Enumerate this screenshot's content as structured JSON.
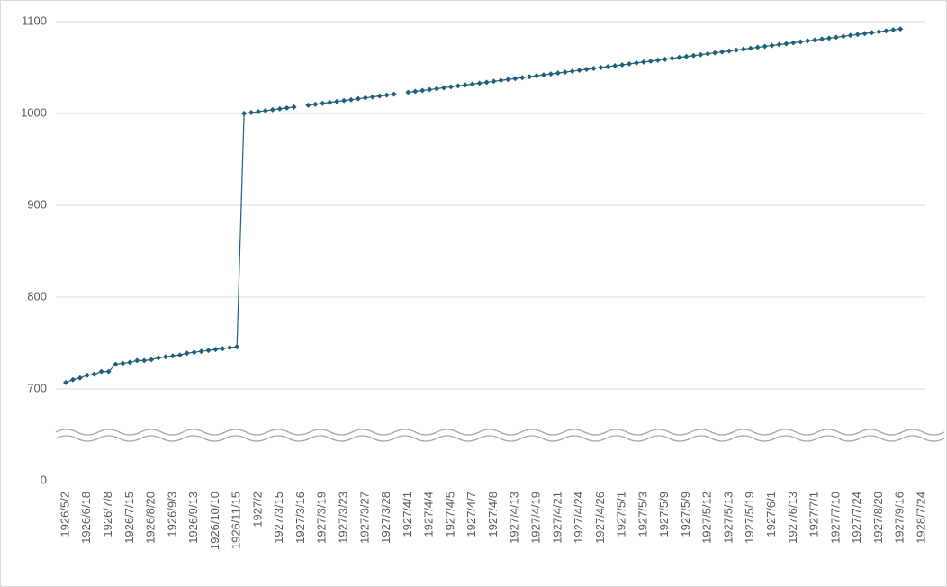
{
  "chart_data": {
    "type": "line",
    "categories": [
      "1926/5/2",
      null,
      null,
      "1926/6/18",
      null,
      null,
      "1926/7/8",
      null,
      null,
      "1926/7/15",
      null,
      null,
      "1926/8/20",
      null,
      null,
      "1926/9/3",
      null,
      null,
      "1926/9/13",
      null,
      null,
      "1926/10/10",
      null,
      null,
      "1926/11/15",
      null,
      null,
      "1927/2",
      null,
      null,
      "1927/3/15",
      null,
      null,
      "1927/3/16",
      null,
      null,
      "1927/3/19",
      null,
      null,
      "1927/3/23",
      null,
      null,
      "1927/3/27",
      null,
      null,
      "1927/3/28",
      null,
      null,
      "1927/4/1",
      null,
      null,
      "1927/4/4",
      null,
      null,
      "1927/4/5",
      null,
      null,
      "1927/4/7",
      null,
      null,
      "1927/4/8",
      null,
      null,
      "1927/4/13",
      null,
      null,
      "1927/4/19",
      null,
      null,
      "1927/4/21",
      null,
      null,
      "1927/4/24",
      null,
      null,
      "1927/4/26",
      null,
      null,
      "1927/5/1",
      null,
      null,
      "1927/5/3",
      null,
      null,
      "1927/5/9",
      null,
      null,
      "1927/5/9",
      null,
      null,
      "1927/5/12",
      null,
      null,
      "1927/5/13",
      null,
      null,
      "1927/5/19",
      null,
      null,
      "1927/6/1",
      null,
      null,
      "1927/6/13",
      null,
      null,
      "1927/7/1",
      null,
      null,
      "1927/7/10",
      null,
      null,
      "1927/7/24",
      null,
      null,
      "1927/8/20",
      null,
      null,
      "1927/9/16",
      null,
      null,
      "1928/7/24"
    ],
    "values": [
      707,
      710,
      712,
      715,
      716,
      719,
      719,
      727,
      728,
      729,
      731,
      731,
      732,
      734,
      735,
      736,
      737,
      739,
      740,
      741,
      742,
      743,
      744,
      745,
      746,
      1000,
      1001,
      1002,
      1003,
      1004,
      1005,
      1006,
      1007,
      null,
      1009,
      1010,
      1011,
      1012,
      1013,
      1014,
      1015,
      1016,
      1017,
      1018,
      1019,
      1020,
      1021,
      null,
      1023,
      1024,
      1025,
      1026,
      1027,
      1028,
      1029,
      1030,
      1031,
      1032,
      1033,
      1034,
      1035,
      1036,
      1037,
      1038,
      1039,
      1040,
      1041,
      1042,
      1043,
      1044,
      1045,
      1046,
      1047,
      1048,
      1049,
      1050,
      1051,
      1052,
      1053,
      1054,
      1055,
      1056,
      1057,
      1058,
      1059,
      1060,
      1061,
      1062,
      1063,
      1064,
      1065,
      1066,
      1067,
      1068,
      1069,
      1070,
      1071,
      1072,
      1073,
      1074,
      1075,
      1076,
      1077,
      1078,
      1079,
      1080,
      1081,
      1082,
      1083,
      1084,
      1085,
      1086,
      1087,
      1088,
      1089,
      1090,
      1091,
      1092,
      null,
      null,
      null
    ],
    "color": "#1f5f7a",
    "ylim": [
      0,
      1100
    ],
    "axis_break": [
      0,
      600
    ],
    "yticks": [
      0,
      700,
      800,
      900,
      1000,
      1100
    ],
    "grid": true
  }
}
